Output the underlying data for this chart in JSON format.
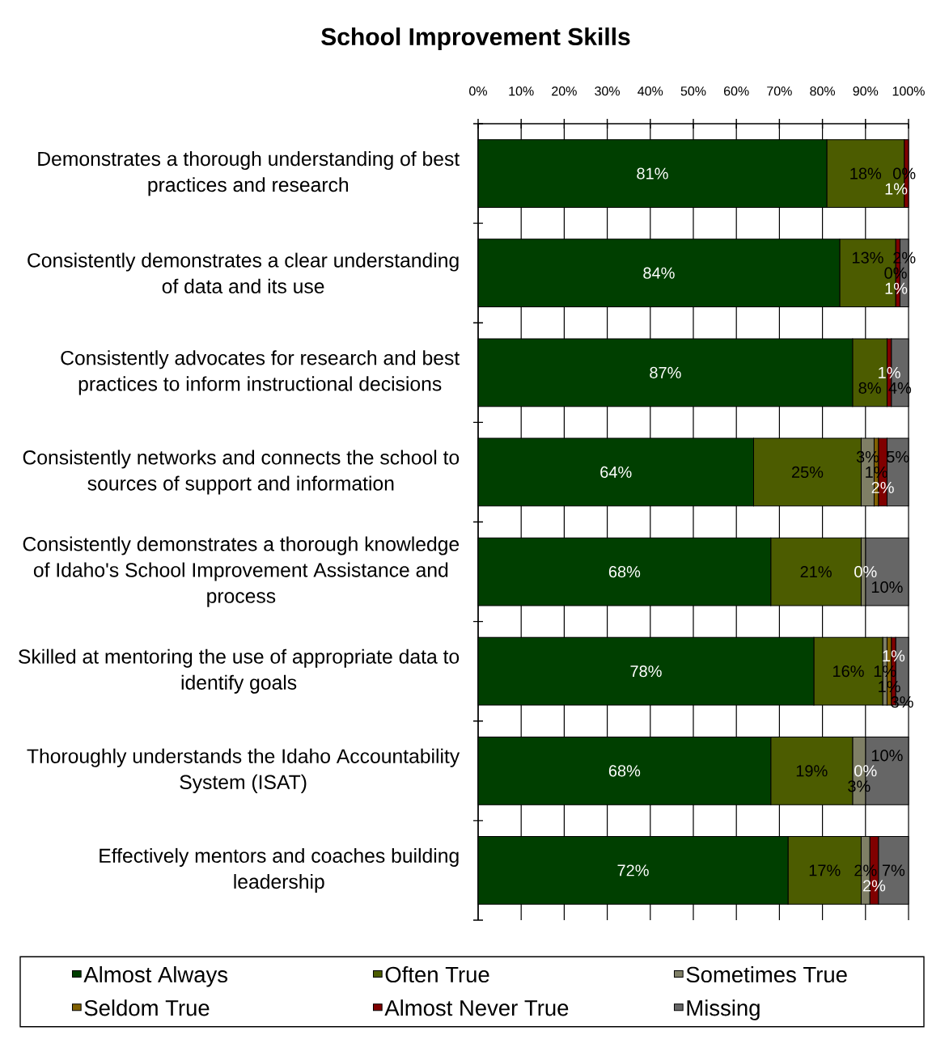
{
  "chart_data": {
    "type": "bar",
    "orientation": "horizontal",
    "stacked": true,
    "title": "School Improvement Skills",
    "categories": [
      "Demonstrates a thorough understanding of best practices and research",
      "Consistently demonstrates a clear understanding of data and its use",
      "Consistently advocates for research and best practices to inform instructional decisions",
      "Consistently networks and connects the school to sources of support and information",
      "Consistently demonstrates a thorough knowledge of Idaho's School Improvement Assistance and process",
      "Skilled at mentoring the use of appropriate data to identify goals",
      "Thoroughly understands the Idaho Accountability System (ISAT)",
      "Effectively mentors and coaches building leadership"
    ],
    "series": [
      {
        "name": "Almost Always",
        "color": "#003f00",
        "values": [
          81,
          84,
          87,
          64,
          68,
          78,
          68,
          72
        ],
        "value_labels": [
          "81%",
          "84%",
          "87%",
          "64%",
          "68%",
          "78%",
          "68%",
          "72%"
        ]
      },
      {
        "name": "Often True",
        "color": "#4c5c00",
        "values": [
          18,
          13,
          8,
          25,
          21,
          16,
          19,
          17
        ],
        "value_labels": [
          "18%",
          "13%",
          "8%",
          "25%",
          "21%",
          "16%",
          "19%",
          "17%"
        ]
      },
      {
        "name": "Sometimes True",
        "color": "#7f7f66",
        "values": [
          0,
          0,
          0,
          3,
          1,
          1,
          3,
          2
        ],
        "value_labels": [
          null,
          null,
          null,
          "3%",
          null,
          "1%",
          "3%",
          "2%"
        ]
      },
      {
        "name": "Seldom True",
        "color": "#806000",
        "values": [
          0,
          0,
          0,
          1,
          0,
          1,
          0,
          0
        ],
        "value_labels": [
          "0%",
          "0%",
          null,
          "1%",
          null,
          "1%",
          null,
          null
        ]
      },
      {
        "name": "Almost Never True",
        "color": "#800000",
        "values": [
          1,
          1,
          1,
          2,
          0,
          1,
          0,
          2
        ],
        "value_labels": [
          "1%",
          "1%",
          "1%",
          "2%",
          "0%",
          "1%",
          "0%",
          "2%"
        ]
      },
      {
        "name": "Missing",
        "color": "#666666",
        "values": [
          0,
          2,
          4,
          5,
          10,
          3,
          10,
          7
        ],
        "value_labels": [
          null,
          "2%",
          "4%",
          "5%",
          "10%",
          "3%",
          "10%",
          "7%"
        ]
      }
    ],
    "xlim": [
      0,
      100
    ],
    "xticks": [
      {
        "value": 0,
        "label": "0%"
      },
      {
        "value": 10,
        "label": "10%"
      },
      {
        "value": 20,
        "label": "20%"
      },
      {
        "value": 30,
        "label": "30%"
      },
      {
        "value": 40,
        "label": "40%"
      },
      {
        "value": 50,
        "label": "50%"
      },
      {
        "value": 60,
        "label": "60%"
      },
      {
        "value": 70,
        "label": "70%"
      },
      {
        "value": 80,
        "label": "80%"
      },
      {
        "value": 90,
        "label": "90%"
      },
      {
        "value": 100,
        "label": "100%"
      }
    ],
    "grid": "x",
    "legend": "bottom"
  }
}
